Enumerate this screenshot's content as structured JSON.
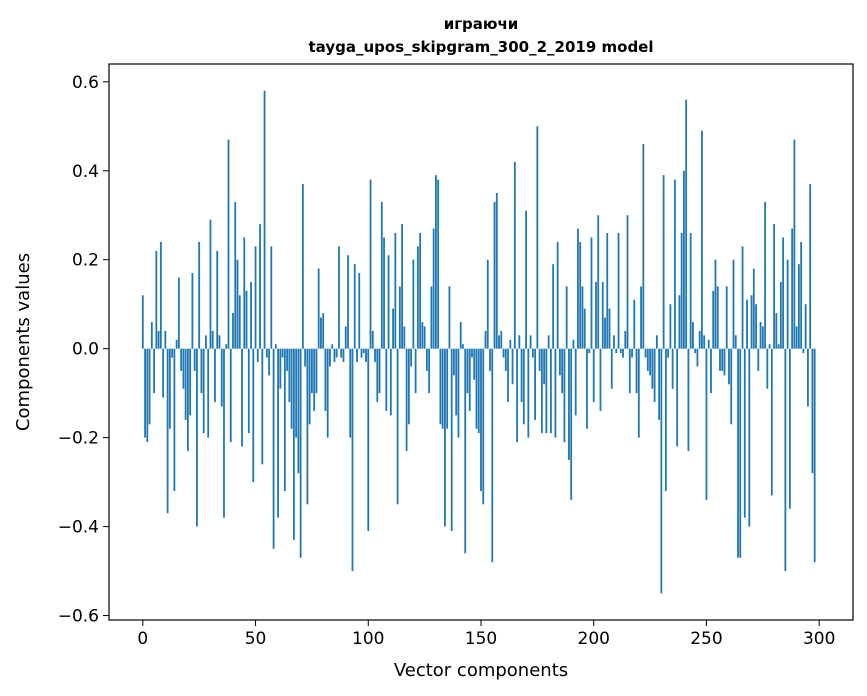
{
  "chart_data": {
    "type": "bar",
    "title": "играючи",
    "subtitle": "tayga_upos_skipgram_300_2_2019 model",
    "xlabel": "Vector components",
    "ylabel": "Components values",
    "xlim": [
      -15,
      315
    ],
    "ylim": [
      -0.61,
      0.64
    ],
    "xticks": [
      0,
      50,
      100,
      150,
      200,
      250,
      300
    ],
    "yticks": [
      -0.6,
      -0.4,
      -0.2,
      0.0,
      0.2,
      0.4,
      0.6
    ],
    "ytick_labels": [
      "−0.6",
      "−0.4",
      "−0.2",
      "0.0",
      "0.2",
      "0.4",
      "0.6"
    ],
    "bar_color": "#1f77b4",
    "grid": false,
    "values": [
      0.12,
      -0.2,
      -0.21,
      -0.17,
      0.06,
      -0.1,
      0.22,
      0.04,
      0.24,
      -0.11,
      0.04,
      -0.37,
      -0.18,
      -0.02,
      -0.32,
      0.02,
      0.16,
      -0.05,
      -0.09,
      -0.16,
      -0.23,
      -0.15,
      0.17,
      -0.05,
      -0.4,
      0.24,
      -0.1,
      -0.19,
      0.03,
      -0.2,
      0.29,
      0.04,
      -0.12,
      0.22,
      0.03,
      -0.13,
      -0.38,
      0.01,
      0.47,
      -0.21,
      0.08,
      0.33,
      0.2,
      0.12,
      -0.22,
      0.25,
      0.13,
      -0.19,
      0.15,
      -0.3,
      0.23,
      -0.03,
      0.28,
      -0.26,
      0.58,
      -0.02,
      -0.06,
      0.23,
      -0.45,
      0.01,
      -0.38,
      -0.09,
      -0.02,
      -0.32,
      -0.05,
      -0.12,
      -0.18,
      -0.43,
      -0.2,
      -0.28,
      -0.47,
      0.37,
      -0.04,
      -0.35,
      -0.17,
      -0.1,
      -0.14,
      -0.1,
      0.18,
      0.07,
      0.08,
      -0.14,
      -0.2,
      -0.04,
      0.01,
      -0.03,
      -0.02,
      0.23,
      -0.02,
      -0.03,
      0.05,
      0.21,
      -0.2,
      -0.5,
      0.19,
      -0.03,
      0.17,
      -0.02,
      -0.01,
      -0.03,
      -0.41,
      0.38,
      0.04,
      -0.03,
      -0.12,
      -0.1,
      0.33,
      0.25,
      -0.14,
      0.21,
      -0.15,
      0.09,
      0.26,
      -0.35,
      0.14,
      0.28,
      0.05,
      -0.23,
      -0.17,
      -0.04,
      0.2,
      -0.1,
      0.23,
      0.26,
      0.06,
      0.05,
      -0.05,
      -0.1,
      0.14,
      0.27,
      0.39,
      0.38,
      -0.17,
      -0.18,
      -0.4,
      -0.18,
      0.14,
      -0.41,
      -0.06,
      -0.15,
      -0.2,
      0.06,
      0.01,
      -0.46,
      -0.1,
      -0.14,
      -0.02,
      -0.07,
      -0.18,
      -0.19,
      -0.32,
      -0.35,
      0.04,
      0.2,
      -0.05,
      -0.48,
      0.33,
      0.35,
      0.03,
      0.04,
      -0.02,
      -0.05,
      -0.12,
      0.02,
      -0.08,
      0.42,
      -0.21,
      0.03,
      -0.12,
      -0.17,
      0.31,
      -0.2,
      0.03,
      -0.02,
      -0.16,
      0.5,
      -0.05,
      -0.19,
      -0.08,
      -0.19,
      0.03,
      -0.19,
      0.19,
      -0.2,
      0.24,
      -0.06,
      -0.1,
      -0.21,
      0.14,
      -0.25,
      -0.34,
      0.02,
      -0.15,
      0.27,
      0.24,
      0.14,
      0.09,
      -0.18,
      -0.01,
      0.25,
      -0.12,
      0.15,
      0.3,
      -0.14,
      0.15,
      0.07,
      0.26,
      0.09,
      -0.09,
      0.03,
      -0.01,
      0.26,
      -0.01,
      -0.02,
      0.04,
      0.3,
      -0.1,
      -0.02,
      0.11,
      -0.1,
      -0.2,
      0.14,
      0.46,
      -0.02,
      -0.05,
      -0.06,
      -0.09,
      -0.12,
      0.03,
      -0.16,
      -0.55,
      0.39,
      -0.32,
      -0.02,
      0.1,
      -0.09,
      0.38,
      -0.22,
      0.12,
      0.26,
      0.4,
      0.56,
      -0.23,
      0.26,
      0.06,
      -0.01,
      -0.04,
      0.04,
      0.49,
      0.03,
      -0.34,
      0.02,
      -0.1,
      0.13,
      0.2,
      0.14,
      -0.05,
      -0.05,
      -0.06,
      0.14,
      -0.08,
      -0.17,
      0.2,
      0.03,
      -0.47,
      -0.47,
      0.23,
      -0.38,
      0.11,
      -0.4,
      0.12,
      0.18,
      0.1,
      -0.05,
      0.06,
      0.05,
      0.33,
      -0.09,
      0.01,
      -0.33,
      0.28,
      0.08,
      0.01,
      0.15,
      0.25,
      -0.5,
      0.2,
      -0.36,
      0.27,
      0.47,
      0.05,
      0.19,
      0.24,
      -0.01,
      0.1,
      -0.13,
      0.37,
      -0.28,
      -0.48
    ]
  }
}
